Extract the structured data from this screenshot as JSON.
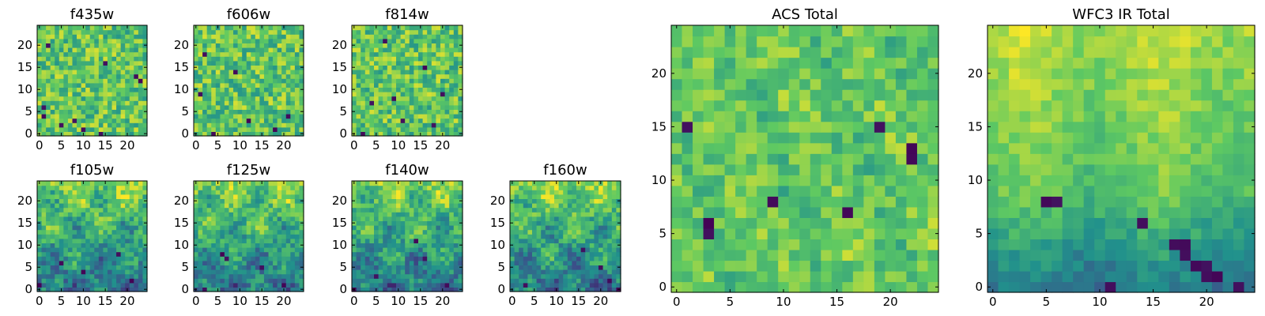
{
  "figure": {
    "background": "#ffffff"
  },
  "colormap": {
    "name": "viridis",
    "stops": [
      "#440154",
      "#3b528b",
      "#21918c",
      "#5ec962",
      "#fde725"
    ]
  },
  "chart_data": [
    {
      "type": "heatmap",
      "title": "f435w",
      "grid_size": 25,
      "xlim": [
        0,
        24
      ],
      "ylim": [
        0,
        24
      ],
      "x_ticks": [
        0,
        5,
        10,
        15,
        20
      ],
      "y_ticks": [
        0,
        5,
        10,
        15,
        20
      ],
      "texture": "noisy",
      "seed": 11,
      "dark_cells": [
        [
          1,
          6
        ],
        [
          1,
          4
        ],
        [
          22,
          13
        ],
        [
          23,
          12
        ],
        [
          5,
          2
        ],
        [
          10,
          1
        ],
        [
          15,
          16
        ],
        [
          2,
          20
        ],
        [
          14,
          0
        ],
        [
          8,
          3
        ]
      ]
    },
    {
      "type": "heatmap",
      "title": "f606w",
      "grid_size": 25,
      "xlim": [
        0,
        24
      ],
      "ylim": [
        0,
        24
      ],
      "x_ticks": [
        0,
        5,
        10,
        15,
        20
      ],
      "y_ticks": [
        0,
        5,
        10,
        15,
        20
      ],
      "texture": "noisy",
      "seed": 23,
      "dark_cells": [
        [
          1,
          9
        ],
        [
          4,
          0
        ],
        [
          21,
          4
        ],
        [
          12,
          3
        ],
        [
          18,
          1
        ],
        [
          9,
          14
        ],
        [
          2,
          18
        ]
      ]
    },
    {
      "type": "heatmap",
      "title": "f814w",
      "grid_size": 25,
      "xlim": [
        0,
        24
      ],
      "ylim": [
        0,
        24
      ],
      "x_ticks": [
        0,
        5,
        10,
        15,
        20
      ],
      "y_ticks": [
        0,
        5,
        10,
        15,
        20
      ],
      "texture": "noisy",
      "seed": 37,
      "dark_cells": [
        [
          9,
          8
        ],
        [
          11,
          3
        ],
        [
          18,
          2
        ],
        [
          4,
          7
        ],
        [
          20,
          9
        ],
        [
          2,
          0
        ],
        [
          16,
          15
        ],
        [
          7,
          21
        ]
      ]
    },
    {
      "type": "heatmap",
      "title": "f105w",
      "grid_size": 25,
      "xlim": [
        0,
        24
      ],
      "ylim": [
        0,
        24
      ],
      "x_ticks": [
        0,
        5,
        10,
        15,
        20
      ],
      "y_ticks": [
        0,
        5,
        10,
        15,
        20
      ],
      "texture": "structured",
      "seed": 51,
      "dark_cells": [
        [
          0,
          1
        ],
        [
          21,
          2
        ],
        [
          5,
          6
        ],
        [
          10,
          4
        ],
        [
          18,
          8
        ]
      ]
    },
    {
      "type": "heatmap",
      "title": "f125w",
      "grid_size": 25,
      "xlim": [
        0,
        24
      ],
      "ylim": [
        0,
        24
      ],
      "x_ticks": [
        0,
        5,
        10,
        15,
        20
      ],
      "y_ticks": [
        0,
        5,
        10,
        15,
        20
      ],
      "texture": "structured",
      "seed": 63,
      "dark_cells": [
        [
          6,
          8
        ],
        [
          7,
          7
        ],
        [
          15,
          5
        ],
        [
          20,
          1
        ],
        [
          2,
          0
        ]
      ]
    },
    {
      "type": "heatmap",
      "title": "f140w",
      "grid_size": 25,
      "xlim": [
        0,
        24
      ],
      "ylim": [
        0,
        24
      ],
      "x_ticks": [
        0,
        5,
        10,
        15,
        20
      ],
      "y_ticks": [
        0,
        5,
        10,
        15,
        20
      ],
      "texture": "structured",
      "seed": 77,
      "dark_cells": [
        [
          16,
          7
        ],
        [
          14,
          11
        ],
        [
          5,
          3
        ],
        [
          0,
          0
        ],
        [
          21,
          1
        ]
      ]
    },
    {
      "type": "heatmap",
      "title": "f160w",
      "grid_size": 25,
      "xlim": [
        0,
        24
      ],
      "ylim": [
        0,
        24
      ],
      "x_ticks": [
        0,
        5,
        10,
        15,
        20
      ],
      "y_ticks": [
        0,
        5,
        10,
        15,
        20
      ],
      "texture": "structured",
      "seed": 89,
      "dark_cells": [
        [
          24,
          0
        ],
        [
          22,
          2
        ],
        [
          16,
          9
        ],
        [
          3,
          1
        ],
        [
          20,
          5
        ]
      ]
    },
    {
      "type": "heatmap",
      "title": "ACS Total",
      "grid_size": 25,
      "xlim": [
        0,
        24
      ],
      "ylim": [
        0,
        24
      ],
      "x_ticks": [
        0,
        5,
        10,
        15,
        20
      ],
      "y_ticks": [
        0,
        5,
        10,
        15,
        20
      ],
      "texture": "total_acs",
      "seed": 101,
      "dark_cells": [
        [
          1,
          15
        ],
        [
          19,
          15
        ],
        [
          22,
          13
        ],
        [
          22,
          12
        ],
        [
          9,
          8
        ],
        [
          16,
          7
        ],
        [
          3,
          6
        ],
        [
          3,
          5
        ]
      ]
    },
    {
      "type": "heatmap",
      "title": "WFC3 IR Total",
      "grid_size": 25,
      "xlim": [
        0,
        24
      ],
      "ylim": [
        0,
        24
      ],
      "x_ticks": [
        0,
        5,
        10,
        15,
        20
      ],
      "y_ticks": [
        0,
        5,
        10,
        15,
        20
      ],
      "texture": "total_ir",
      "seed": 131,
      "dark_cells": [
        [
          5,
          8
        ],
        [
          6,
          8
        ],
        [
          14,
          6
        ],
        [
          17,
          4
        ],
        [
          18,
          4
        ],
        [
          18,
          3
        ],
        [
          19,
          2
        ],
        [
          20,
          1
        ],
        [
          21,
          1
        ],
        [
          20,
          2
        ],
        [
          11,
          0
        ],
        [
          23,
          0
        ]
      ]
    }
  ]
}
